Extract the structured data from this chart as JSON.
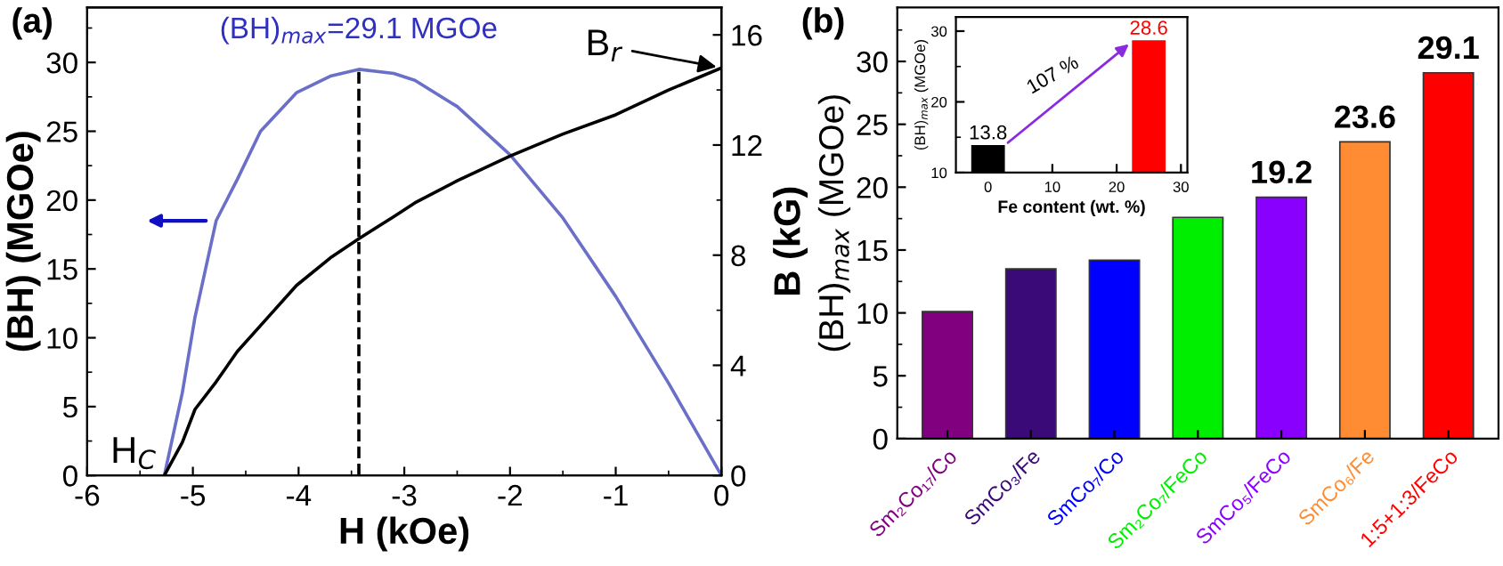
{
  "chart_data": [
    {
      "type": "line",
      "xlabel": "H (kOe)",
      "ylabel": "(BH) (MGOe)",
      "y2label": "B (kG)",
      "xlim": [
        -6,
        0
      ],
      "xticks": [
        -6,
        -5,
        -4,
        -3,
        -2,
        -1,
        0
      ],
      "ylim": [
        0,
        34
      ],
      "yticks": [
        0,
        5,
        10,
        15,
        20,
        25,
        30
      ],
      "y2lim": [
        0,
        17
      ],
      "y2ticks": [
        0,
        4,
        8,
        12,
        16
      ],
      "series": [
        {
          "color": "#6a6fc8",
          "axis": "y",
          "x": [
            -5.27,
            -5.1,
            -4.98,
            -4.78,
            -4.58,
            -4.36,
            -4.02,
            -3.7,
            -3.43,
            -3.1,
            -2.9,
            -2.5,
            -2.0,
            -1.5,
            -1.0,
            -0.5,
            0
          ],
          "values": [
            0,
            6,
            11.5,
            18.5,
            21.5,
            25,
            27.8,
            29.0,
            29.5,
            29.2,
            28.7,
            26.8,
            23.3,
            18.7,
            13.0,
            6.7,
            0
          ]
        },
        {
          "color": "#000000",
          "axis": "y2",
          "x": [
            -5.27,
            -5.1,
            -4.98,
            -4.78,
            -4.58,
            -4.3,
            -4.02,
            -3.7,
            -3.43,
            -3.1,
            -2.9,
            -2.5,
            -2.0,
            -1.5,
            -1.0,
            -0.5,
            0
          ],
          "values": [
            0,
            1.2,
            2.4,
            3.4,
            4.5,
            5.7,
            6.9,
            7.9,
            8.6,
            9.4,
            9.9,
            10.7,
            11.6,
            12.4,
            13.1,
            14.0,
            14.8
          ]
        },
        {
          "color": "#000000",
          "axis": "y",
          "line_style": "dashed",
          "x": [
            -3.43,
            -3.43
          ],
          "values": [
            0,
            29.5
          ]
        }
      ],
      "annotations": [
        "(a)",
        {
          "text": "(BH)$_{max}$=29.1 MGOe",
          "x": -3.43,
          "y": 29.5
        },
        {
          "text": "H$_{C}$",
          "x": -5.27,
          "y": 0
        },
        {
          "text": "B$_{r}$",
          "x": 0,
          "y": 29.6
        }
      ]
    },
    {
      "type": "bar",
      "ylabel": "(BH)$_{max}$ (MGOe)",
      "categories": [
        "Sm₂Co₁₇/Co",
        "SmCo₃/Fe",
        "SmCo₇/Co",
        "Sm₂Co₇/FeCo",
        "SmCo₅/FeCo",
        "SmCo₆/Fe",
        "1:5+1:3/FeCo"
      ],
      "values": [
        10.1,
        13.5,
        14.2,
        17.6,
        19.2,
        23.6,
        29.1
      ],
      "colors": [
        "#800080",
        "#3a0a78",
        "#0000ff",
        "#00ee00",
        "#8a00ff",
        "#ff8c33",
        "#ff0000"
      ],
      "value_labels": [
        null,
        null,
        null,
        null,
        "19.2",
        "23.6",
        "29.1"
      ],
      "ylim": [
        0,
        34.3
      ],
      "yticks": [
        0,
        5,
        10,
        15,
        20,
        25,
        30
      ],
      "annotations": [
        "(b)"
      ]
    },
    {
      "type": "bar",
      "xlabel": "Fe content (wt. %)",
      "ylabel": "(BH)$_{max}$ (MGOe)",
      "x": [
        0,
        25
      ],
      "values": [
        13.8,
        28.6
      ],
      "colors": [
        "#000000",
        "#ff0000"
      ],
      "data_labels": true,
      "xlim": [
        -5,
        31
      ],
      "xticks": [
        0,
        10,
        20,
        30
      ],
      "ylim": [
        10,
        32
      ],
      "yticks": [
        10,
        20,
        30
      ],
      "annotations": [
        "107 %"
      ]
    }
  ]
}
